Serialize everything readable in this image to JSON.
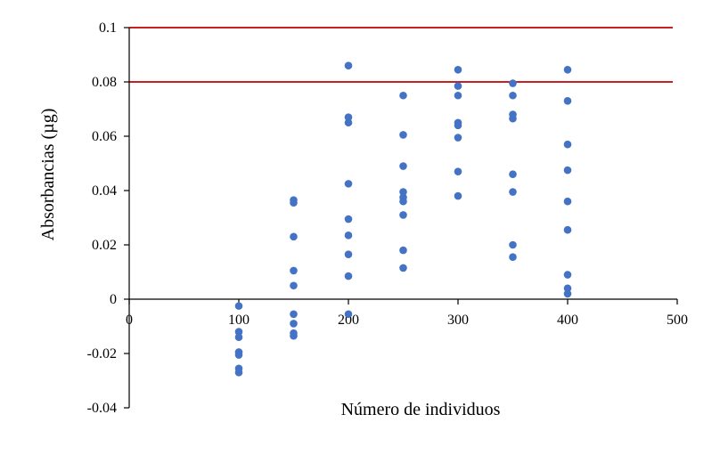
{
  "chart_data": {
    "type": "scatter",
    "title": "",
    "xlabel": "Número de individuos",
    "ylabel": "Absorbancias (µg)",
    "xlim": [
      0,
      500
    ],
    "ylim": [
      -0.04,
      0.1
    ],
    "x_ticks": [
      0,
      100,
      200,
      300,
      400,
      500
    ],
    "x_tick_labels": [
      "0",
      "100",
      "200",
      "300",
      "400",
      "500"
    ],
    "y_ticks": [
      -0.04,
      -0.02,
      0,
      0.02,
      0.04,
      0.06,
      0.08,
      0.1
    ],
    "y_tick_labels": [
      "-0.04",
      "-0.02",
      "0",
      "0.02",
      "0.04",
      "0.06",
      "0.08",
      "0.1"
    ],
    "grid": false,
    "point_color": "#4472C4",
    "reference_lines": [
      {
        "y": 0.1,
        "color": "#C00000"
      },
      {
        "y": 0.08,
        "color": "#C00000"
      }
    ],
    "series": [
      {
        "points": [
          {
            "x": 100,
            "y": -0.0025
          },
          {
            "x": 100,
            "y": -0.012
          },
          {
            "x": 100,
            "y": -0.014
          },
          {
            "x": 100,
            "y": -0.0195
          },
          {
            "x": 100,
            "y": -0.0205
          },
          {
            "x": 100,
            "y": -0.0255
          },
          {
            "x": 100,
            "y": -0.027
          },
          {
            "x": 150,
            "y": 0.0365
          },
          {
            "x": 150,
            "y": 0.0355
          },
          {
            "x": 150,
            "y": 0.023
          },
          {
            "x": 150,
            "y": 0.0105
          },
          {
            "x": 150,
            "y": 0.005
          },
          {
            "x": 150,
            "y": -0.0055
          },
          {
            "x": 150,
            "y": -0.009
          },
          {
            "x": 150,
            "y": -0.0125
          },
          {
            "x": 150,
            "y": -0.0135
          },
          {
            "x": 200,
            "y": 0.086
          },
          {
            "x": 200,
            "y": 0.067
          },
          {
            "x": 200,
            "y": 0.065
          },
          {
            "x": 200,
            "y": 0.0425
          },
          {
            "x": 200,
            "y": 0.0295
          },
          {
            "x": 200,
            "y": 0.0235
          },
          {
            "x": 200,
            "y": 0.0165
          },
          {
            "x": 200,
            "y": 0.0085
          },
          {
            "x": 200,
            "y": -0.0055
          },
          {
            "x": 250,
            "y": 0.075
          },
          {
            "x": 250,
            "y": 0.0605
          },
          {
            "x": 250,
            "y": 0.049
          },
          {
            "x": 250,
            "y": 0.0395
          },
          {
            "x": 250,
            "y": 0.0375
          },
          {
            "x": 250,
            "y": 0.036
          },
          {
            "x": 250,
            "y": 0.031
          },
          {
            "x": 250,
            "y": 0.018
          },
          {
            "x": 250,
            "y": 0.0115
          },
          {
            "x": 300,
            "y": 0.0845
          },
          {
            "x": 300,
            "y": 0.0785
          },
          {
            "x": 300,
            "y": 0.075
          },
          {
            "x": 300,
            "y": 0.065
          },
          {
            "x": 300,
            "y": 0.064
          },
          {
            "x": 300,
            "y": 0.0595
          },
          {
            "x": 300,
            "y": 0.047
          },
          {
            "x": 300,
            "y": 0.038
          },
          {
            "x": 350,
            "y": 0.0795
          },
          {
            "x": 350,
            "y": 0.075
          },
          {
            "x": 350,
            "y": 0.068
          },
          {
            "x": 350,
            "y": 0.0665
          },
          {
            "x": 350,
            "y": 0.046
          },
          {
            "x": 350,
            "y": 0.0395
          },
          {
            "x": 350,
            "y": 0.02
          },
          {
            "x": 350,
            "y": 0.0155
          },
          {
            "x": 400,
            "y": 0.0845
          },
          {
            "x": 400,
            "y": 0.073
          },
          {
            "x": 400,
            "y": 0.057
          },
          {
            "x": 400,
            "y": 0.0475
          },
          {
            "x": 400,
            "y": 0.036
          },
          {
            "x": 400,
            "y": 0.0255
          },
          {
            "x": 400,
            "y": 0.009
          },
          {
            "x": 400,
            "y": 0.004
          },
          {
            "x": 400,
            "y": 0.002
          }
        ]
      }
    ]
  }
}
